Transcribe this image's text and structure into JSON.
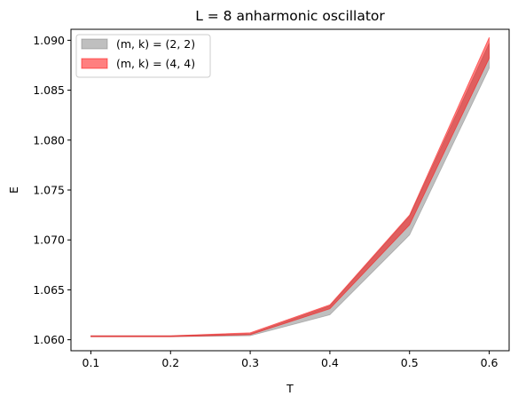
{
  "chart_data": {
    "type": "area",
    "title": "L = 8 anharmonic oscillator",
    "xlabel": "T",
    "ylabel": "E",
    "x": [
      0.1,
      0.2,
      0.3,
      0.4,
      0.5,
      0.6
    ],
    "xlim": [
      0.075,
      0.625
    ],
    "ylim": [
      1.0589,
      1.0911
    ],
    "xticks": [
      "0.1",
      "0.2",
      "0.3",
      "0.4",
      "0.5",
      "0.6"
    ],
    "yticks": [
      "1.060",
      "1.065",
      "1.070",
      "1.075",
      "1.080",
      "1.085",
      "1.090"
    ],
    "grid": false,
    "legend_position": "top-left",
    "series": [
      {
        "name": "(m, k) = (2, 2)",
        "color": "#808080",
        "alpha": 0.5,
        "lower": [
          1.0603,
          1.0603,
          1.0604,
          1.0625,
          1.0705,
          1.0872
        ],
        "upper": [
          1.0604,
          1.0604,
          1.0606,
          1.0634,
          1.0724,
          1.0897
        ]
      },
      {
        "name": "(m, k) = (4, 4)",
        "color": "#ff0000",
        "alpha": 0.5,
        "lower": [
          1.0603,
          1.0603,
          1.0605,
          1.0631,
          1.0715,
          1.0882
        ],
        "upper": [
          1.0604,
          1.0604,
          1.0607,
          1.0635,
          1.0725,
          1.0903
        ]
      }
    ]
  }
}
